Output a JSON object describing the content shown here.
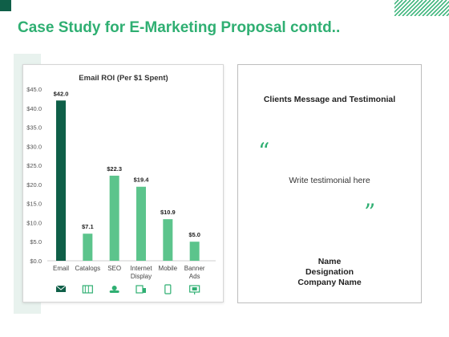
{
  "slide": {
    "title": "Case Study for E-Marketing Proposal contd..",
    "colors": {
      "accent": "#2faf72",
      "dark_accent": "#0f5f48",
      "bar": "#5cc48c",
      "band": "#e8f2ee"
    }
  },
  "chart_data": {
    "type": "bar",
    "title": "Email ROI (Per $1 Spent)",
    "categories": [
      [
        "Email"
      ],
      [
        "Catalogs"
      ],
      [
        "SEO"
      ],
      [
        "Internet",
        "Display"
      ],
      [
        "Mobile"
      ],
      [
        "Banner",
        "Ads"
      ]
    ],
    "values": [
      42.0,
      7.1,
      22.3,
      19.4,
      10.9,
      5.0
    ],
    "value_labels": [
      "$42.0",
      "$7.1",
      "$22.3",
      "$19.4",
      "$10.9",
      "$5.0"
    ],
    "bar_colors": [
      "#0f5f48",
      "#5cc48c",
      "#5cc48c",
      "#5cc48c",
      "#5cc48c",
      "#5cc48c"
    ],
    "ylim": [
      0,
      45
    ],
    "yticks": [
      "$0.0",
      "$5.0",
      "$10.0",
      "$15.0",
      "$20.0",
      "$25.0",
      "$30.0",
      "$35.0",
      "$40.0",
      "$45.0"
    ],
    "icons": [
      "email-icon",
      "catalog-icon",
      "seo-icon",
      "internet-display-icon",
      "mobile-icon",
      "banner-ads-icon"
    ],
    "grid": false,
    "legend": "none"
  },
  "testimonial": {
    "heading": "Clients Message and Testimonial",
    "open_quote": "“",
    "close_quote": "”",
    "body": "Write testimonial here",
    "name": "Name",
    "designation": "Designation",
    "company": "Company Name"
  }
}
